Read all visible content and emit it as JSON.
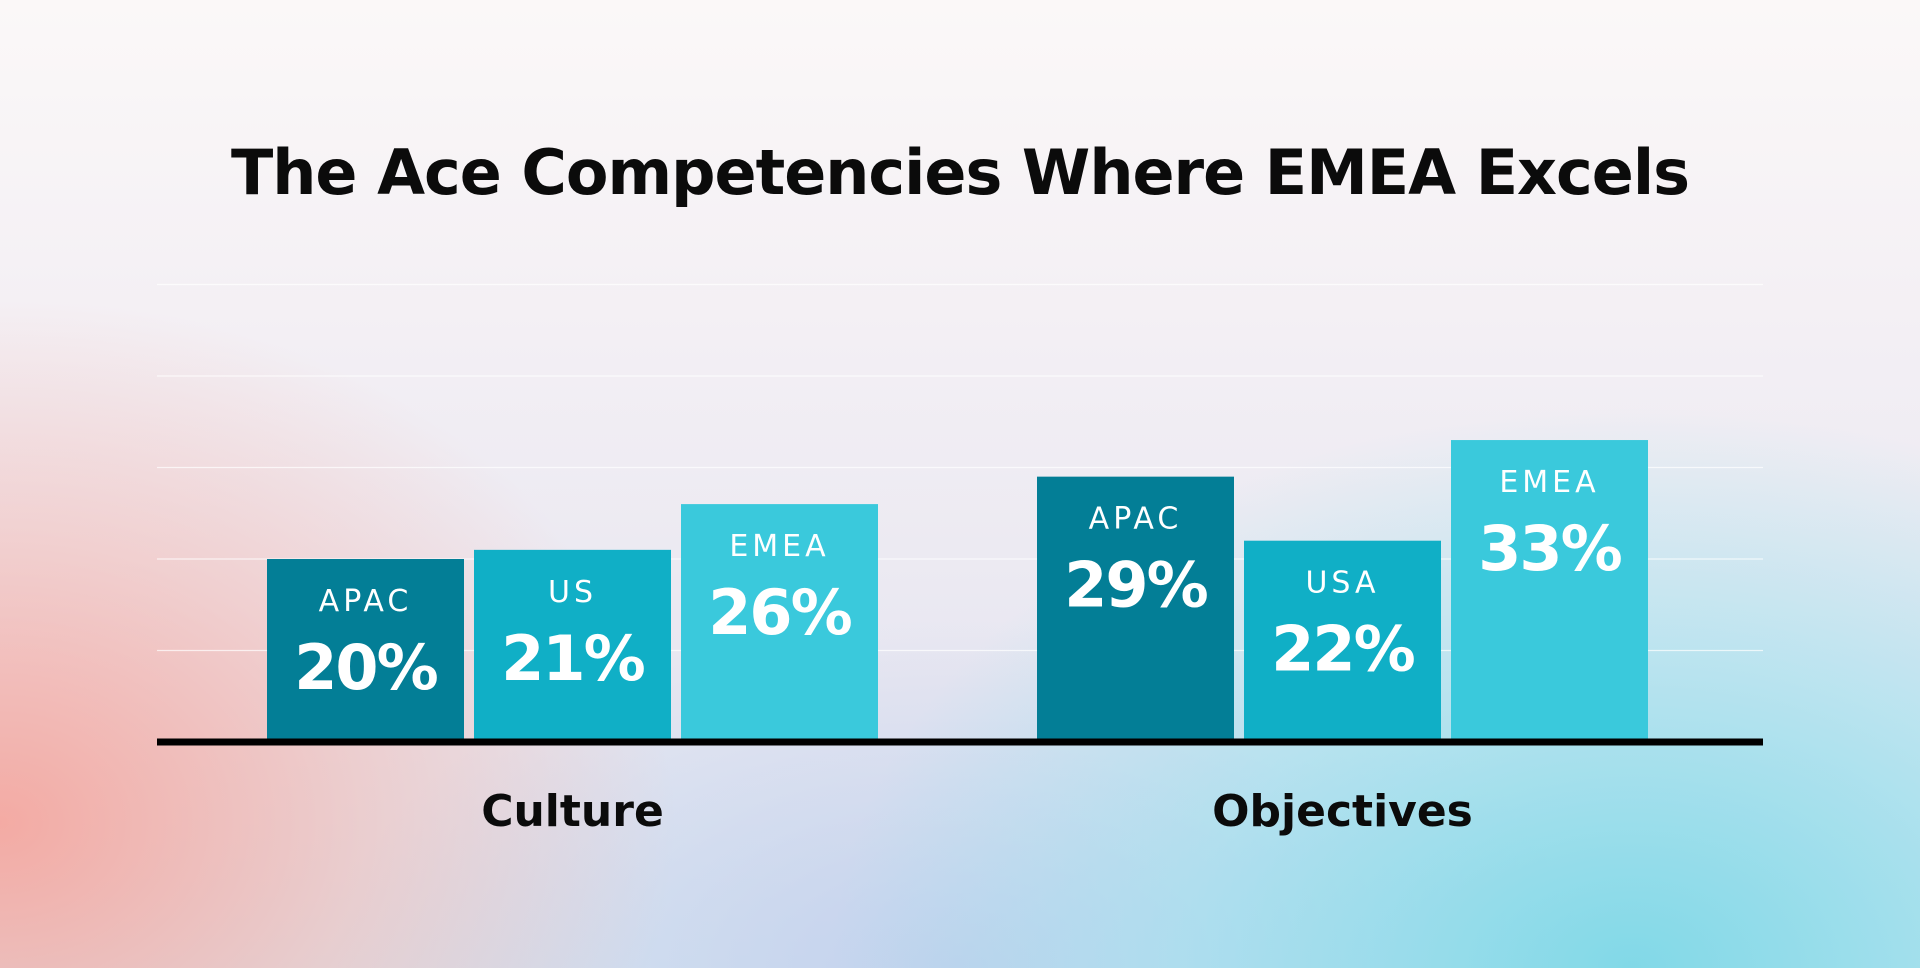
{
  "chart_data": {
    "type": "bar",
    "title": "The Ace Competencies Where EMEA Excels",
    "categories": [
      "Culture",
      "Objectives"
    ],
    "groups": [
      {
        "category": "Culture",
        "bars": [
          {
            "label": "APAC",
            "value": 20,
            "value_text": "20%",
            "color": "#037e96"
          },
          {
            "label": "US",
            "value": 21,
            "value_text": "21%",
            "color": "#10afc6"
          },
          {
            "label": "EMEA",
            "value": 26,
            "value_text": "26%",
            "color": "#3ac9dc"
          }
        ]
      },
      {
        "category": "Objectives",
        "bars": [
          {
            "label": "APAC",
            "value": 29,
            "value_text": "29%",
            "color": "#037e96"
          },
          {
            "label": "USA",
            "value": 22,
            "value_text": "22%",
            "color": "#10afc6"
          },
          {
            "label": "EMEA",
            "value": 33,
            "value_text": "33%",
            "color": "#3ac9dc"
          }
        ]
      }
    ],
    "ylim": [
      0,
      50
    ],
    "grid": true,
    "xlabel": "",
    "ylabel": ""
  },
  "colors": {
    "text": "#0b0b0b",
    "bar_text": "#ffffff",
    "axis": "#000000",
    "grid": "#ffffff"
  }
}
